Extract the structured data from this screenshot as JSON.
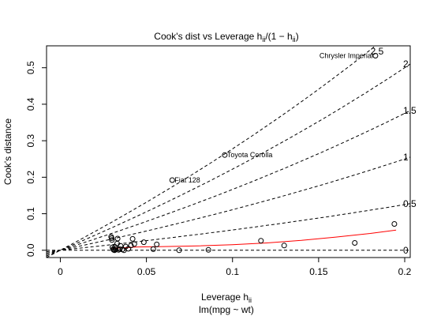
{
  "chart_data": {
    "type": "scatter",
    "title": "Cook's dist vs Leverage  h",
    "title_subscript": "ii",
    "title_suffix": "/(1 − h",
    "title_suffix_subscript": "ii",
    "title_close": ")",
    "xlabel": "Leverage  h",
    "xlabel_subscript": "ii",
    "ylabel": "Cook's distance",
    "subtitle": "lm(mpg ~ wt)",
    "xlim": [
      -0.008,
      0.2032
    ],
    "ylim": [
      -0.02,
      0.56
    ],
    "x_ticks": [
      0,
      0.05,
      0.1,
      0.15,
      0.2
    ],
    "x_tick_labels": [
      "0",
      "0.05",
      "0.1",
      "0.15",
      "0.2"
    ],
    "y_ticks": [
      0.0,
      0.1,
      0.2,
      0.3,
      0.4,
      0.5
    ],
    "y_tick_labels": [
      "0.0",
      "0.1",
      "0.2",
      "0.3",
      "0.4",
      "0.5"
    ],
    "contours": [
      {
        "label": "0",
        "value": 0
      },
      {
        "label": "0.5",
        "value": 0.5
      },
      {
        "label": "1",
        "value": 1
      },
      {
        "label": "1.5",
        "value": 1.5
      },
      {
        "label": "2",
        "value": 2
      },
      {
        "label": "2.5",
        "value": 2.5
      }
    ],
    "points": [
      {
        "x": 0.0295,
        "y": 0.037
      },
      {
        "x": 0.0298,
        "y": 0.033
      },
      {
        "x": 0.03,
        "y": 0.028
      },
      {
        "x": 0.0303,
        "y": 0.008
      },
      {
        "x": 0.0307,
        "y": 0.003
      },
      {
        "x": 0.031,
        "y": 0.001
      },
      {
        "x": 0.0315,
        "y": 0.0
      },
      {
        "x": 0.0318,
        "y": 0.009
      },
      {
        "x": 0.0322,
        "y": 0.002
      },
      {
        "x": 0.033,
        "y": 0.018
      },
      {
        "x": 0.0333,
        "y": 0.032
      },
      {
        "x": 0.0338,
        "y": 0.001
      },
      {
        "x": 0.0345,
        "y": 0.003
      },
      {
        "x": 0.035,
        "y": 0.012
      },
      {
        "x": 0.036,
        "y": 0.002
      },
      {
        "x": 0.037,
        "y": 0.0
      },
      {
        "x": 0.038,
        "y": 0.01
      },
      {
        "x": 0.0395,
        "y": 0.004
      },
      {
        "x": 0.041,
        "y": 0.013
      },
      {
        "x": 0.042,
        "y": 0.031
      },
      {
        "x": 0.043,
        "y": 0.017
      },
      {
        "x": 0.0485,
        "y": 0.022
      },
      {
        "x": 0.054,
        "y": 0.003
      },
      {
        "x": 0.056,
        "y": 0.016
      },
      {
        "x": 0.069,
        "y": 0.0
      },
      {
        "x": 0.086,
        "y": 0.001
      },
      {
        "x": 0.1165,
        "y": 0.026
      },
      {
        "x": 0.13,
        "y": 0.013
      },
      {
        "x": 0.171,
        "y": 0.02
      },
      {
        "x": 0.194,
        "y": 0.072
      }
    ],
    "labeled_points": [
      {
        "x": 0.0955,
        "y": 0.261,
        "label": "Toyota Corolla"
      },
      {
        "x": 0.065,
        "y": 0.192,
        "label": "Fiat 128"
      },
      {
        "x": 0.183,
        "y": 0.533,
        "label": "Chrysler Imperial"
      }
    ],
    "smooth_line": [
      [
        0.03,
        0.005
      ],
      [
        0.045,
        0.009
      ],
      [
        0.06,
        0.01
      ],
      [
        0.08,
        0.012
      ],
      [
        0.1,
        0.015
      ],
      [
        0.12,
        0.02
      ],
      [
        0.14,
        0.027
      ],
      [
        0.16,
        0.036
      ],
      [
        0.18,
        0.046
      ],
      [
        0.195,
        0.055
      ]
    ],
    "colors": {
      "points": "#000000",
      "smooth": "#ff0000",
      "contours": "#000000"
    }
  }
}
